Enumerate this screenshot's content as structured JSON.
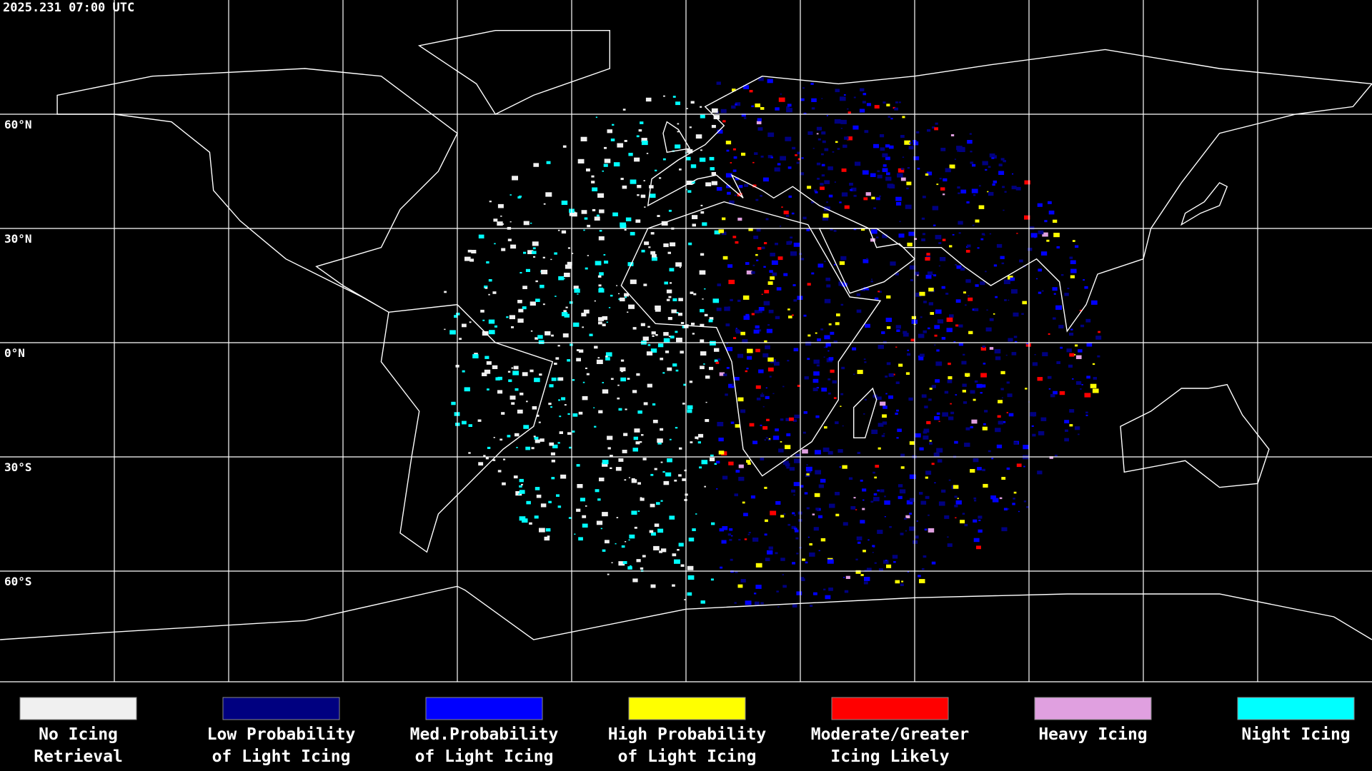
{
  "header": {
    "timestamp": "2025.231 07:00 UTC"
  },
  "map": {
    "latitude_labels": [
      "60°N",
      "30°N",
      "0°N",
      "30°S",
      "60°S"
    ]
  },
  "legend": [
    {
      "lines": [
        "No Icing",
        "Retrieval"
      ],
      "color": "#f0f0f0"
    },
    {
      "lines": [
        "Low Probability",
        "of Light Icing"
      ],
      "color": "#000080"
    },
    {
      "lines": [
        "Med.Probability",
        "of Light Icing"
      ],
      "color": "#0000ff"
    },
    {
      "lines": [
        "High Probability",
        "of Light Icing"
      ],
      "color": "#ffff00"
    },
    {
      "lines": [
        "Moderate/Greater",
        "Icing Likely"
      ],
      "color": "#ff0000"
    },
    {
      "lines": [
        "Heavy Icing"
      ],
      "color": "#e0a0e0"
    },
    {
      "lines": [
        "Night Icing"
      ],
      "color": "#00ffff"
    }
  ]
}
